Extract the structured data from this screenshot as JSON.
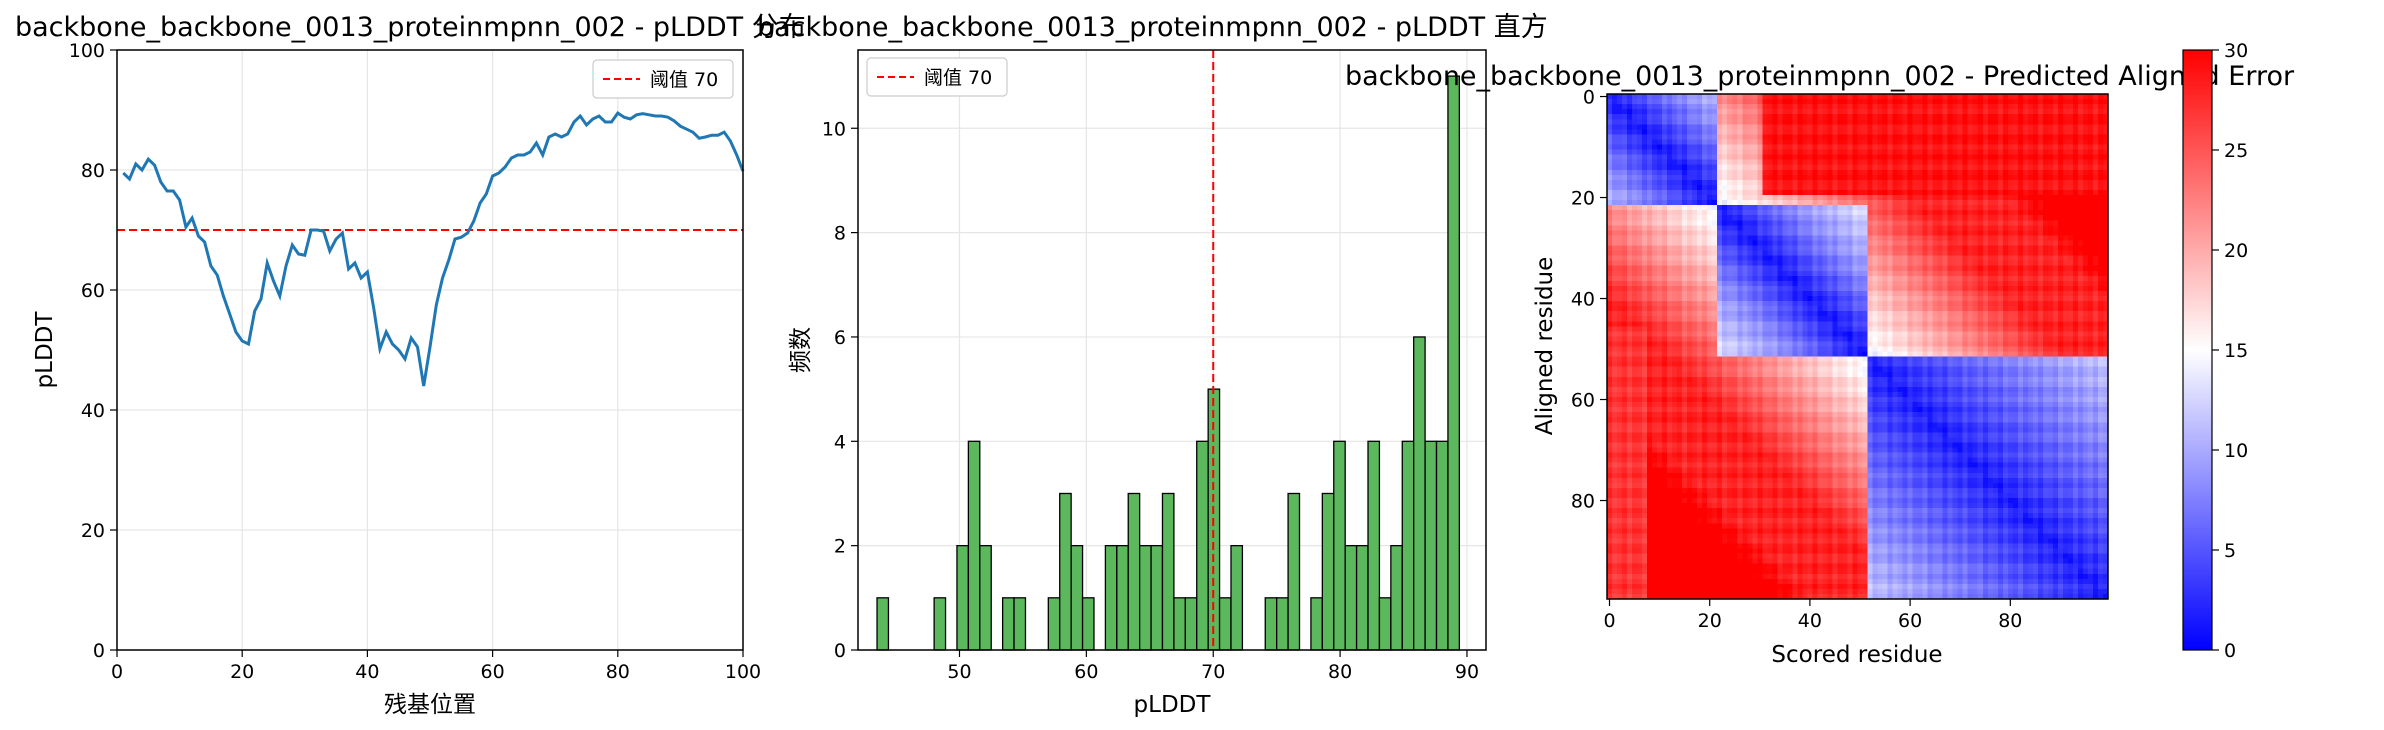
{
  "colors": {
    "line": "#1f77b4",
    "threshold": "#ff0000",
    "bar_fill": "#5cb85c",
    "bar_edge": "#000000",
    "grid": "#e6e6e6"
  },
  "chart_data": [
    {
      "type": "line",
      "title": "backbone_backbone_0013_proteinmpnn_002 - pLDDT 分布",
      "xlabel": "残基位置",
      "ylabel": "pLDDT",
      "xlim": [
        0,
        100
      ],
      "ylim": [
        0,
        100
      ],
      "xticks": [
        "0",
        "20",
        "40",
        "60",
        "80",
        "100"
      ],
      "yticks": [
        "0",
        "20",
        "40",
        "60",
        "80",
        "100"
      ],
      "grid": true,
      "legend": {
        "placement": "top-right",
        "entries": [
          "阈值 70"
        ]
      },
      "threshold": {
        "value": 70,
        "label": "阈值 70"
      },
      "series": [
        {
          "x": [
            1,
            2,
            3,
            4,
            5,
            6,
            7,
            8,
            9,
            10,
            11,
            12,
            13,
            14,
            15,
            16,
            17,
            18,
            19,
            20,
            21,
            22,
            23,
            24,
            25,
            26,
            27,
            28,
            29,
            30,
            31,
            32,
            33,
            34,
            35,
            36,
            37,
            38,
            39,
            40,
            41,
            42,
            43,
            44,
            45,
            46,
            47,
            48,
            49,
            50,
            51,
            52,
            53,
            54,
            55,
            56,
            57,
            58,
            59,
            60,
            61,
            62,
            63,
            64,
            65,
            66,
            67,
            68,
            69,
            70,
            71,
            72,
            73,
            74,
            75,
            76,
            77,
            78,
            79,
            80,
            81,
            82,
            83,
            84,
            85,
            86,
            87,
            88,
            89,
            90,
            91,
            92,
            93,
            94,
            95,
            96,
            97,
            98,
            99,
            100
          ],
          "values": [
            79.5,
            78.5,
            81,
            80,
            81.8,
            80.8,
            78,
            76.5,
            76.5,
            75,
            70.5,
            72,
            69,
            68,
            64,
            62.5,
            59,
            56,
            53,
            51.5,
            51,
            56.5,
            58.5,
            64.5,
            61.5,
            59,
            64,
            67.5,
            66,
            65.8,
            70,
            70,
            69.8,
            66.5,
            68.5,
            69.5,
            63.5,
            64.5,
            62,
            63,
            57,
            50.2,
            53,
            51,
            50,
            48.5,
            52,
            50.5,
            44,
            50.5,
            57.5,
            62,
            65,
            68.5,
            68.8,
            69.5,
            71.5,
            74.5,
            76,
            79,
            79.5,
            80.5,
            82,
            82.5,
            82.5,
            83,
            84.5,
            82.5,
            85.5,
            86,
            85.5,
            86,
            88,
            89,
            87.5,
            88.5,
            89,
            88,
            88,
            89.5,
            88.8,
            88.5,
            89.2,
            89.4,
            89.2,
            89,
            89,
            88.8,
            88.2,
            87.3,
            86.8,
            86.3,
            85.3,
            85.5,
            85.8,
            85.8,
            86.3,
            84.8,
            82.5,
            79.8
          ]
        }
      ]
    },
    {
      "type": "bar",
      "title": "backbone_backbone_0013_proteinmpnn_002 - pLDDT 直方",
      "xlabel": "pLDDT",
      "ylabel": "频数",
      "xlim": [
        42,
        91.5
      ],
      "ylim": [
        0,
        11.5
      ],
      "xticks": [
        "50",
        "60",
        "70",
        "80",
        "90"
      ],
      "yticks": [
        "0",
        "2",
        "4",
        "6",
        "8",
        "10"
      ],
      "grid": true,
      "legend": {
        "placement": "top-left",
        "entries": [
          "阈值 70"
        ]
      },
      "threshold": {
        "value": 70,
        "label": "阈值 70"
      },
      "bin_start": 43.5,
      "bin_width": 0.9,
      "values": [
        1,
        0,
        0,
        0,
        0,
        1,
        0,
        2,
        4,
        2,
        0,
        1,
        1,
        0,
        0,
        1,
        3,
        2,
        1,
        0,
        2,
        2,
        3,
        2,
        2,
        3,
        1,
        1,
        4,
        5,
        1,
        2,
        0,
        0,
        1,
        1,
        3,
        0,
        1,
        3,
        4,
        2,
        2,
        4,
        1,
        2,
        4,
        6,
        4,
        4,
        11
      ]
    },
    {
      "type": "heatmap",
      "title": "backbone_backbone_0013_proteinmpnn_002 - Predicted Aligned Error",
      "xlabel": "Scored residue",
      "ylabel": "Aligned residue",
      "xticks": [
        "0",
        "20",
        "40",
        "60",
        "80"
      ],
      "yticks": [
        "0",
        "20",
        "40",
        "60",
        "80"
      ],
      "colorbar": {
        "range": [
          0,
          30
        ],
        "ticks": [
          "0",
          "5",
          "10",
          "15",
          "20",
          "25",
          "30"
        ],
        "colormap": "bwr"
      },
      "n_residues": 100
    }
  ]
}
